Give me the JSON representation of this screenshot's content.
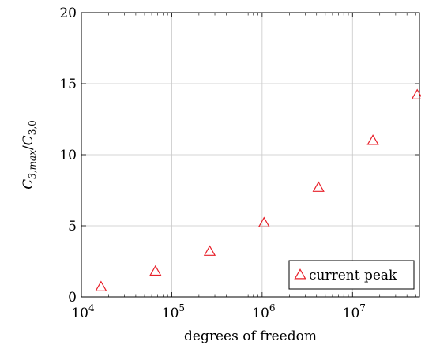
{
  "chart_data": {
    "type": "scatter",
    "xlabel": "degrees of freedom",
    "ylabel": "C_{3,max}/C_{3,0}",
    "ylabel_parts": {
      "base": "C",
      "sub_num": "3,max",
      "sep": "/",
      "base2": "C",
      "sub_den": "3,0"
    },
    "xscale": "log",
    "xlim": [
      10000,
      55000000
    ],
    "ylim": [
      0,
      20
    ],
    "xticks": [
      {
        "value": 10000,
        "base": "10",
        "exp": "4"
      },
      {
        "value": 100000,
        "base": "10",
        "exp": "5"
      },
      {
        "value": 1000000,
        "base": "10",
        "exp": "6"
      },
      {
        "value": 10000000,
        "base": "10",
        "exp": "7"
      }
    ],
    "yticks": [
      {
        "value": 0,
        "label": "0"
      },
      {
        "value": 5,
        "label": "5"
      },
      {
        "value": 10,
        "label": "10"
      },
      {
        "value": 15,
        "label": "15"
      },
      {
        "value": 20,
        "label": "20"
      }
    ],
    "grid": true,
    "legend_position": "bottom-right",
    "series": [
      {
        "name": "current peak",
        "marker": "triangle",
        "color": "#e8202a",
        "points": [
          {
            "x": 16500,
            "y": 0.7
          },
          {
            "x": 66000,
            "y": 1.8
          },
          {
            "x": 263000,
            "y": 3.2
          },
          {
            "x": 1050000,
            "y": 5.2
          },
          {
            "x": 4200000,
            "y": 7.7
          },
          {
            "x": 16800000,
            "y": 11.0
          },
          {
            "x": 52000000,
            "y": 14.2
          }
        ]
      }
    ]
  }
}
